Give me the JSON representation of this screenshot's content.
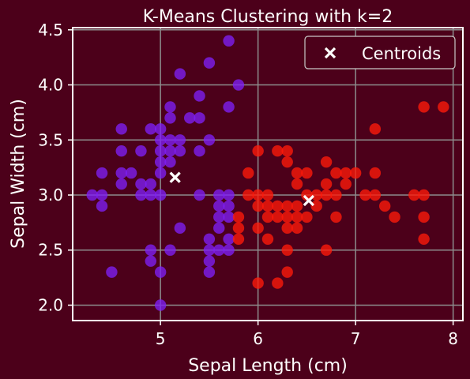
{
  "colors": {
    "figure_bg": "#4c001a",
    "axes_bg": "#4c001a",
    "cluster_0": "#7f1ff5",
    "cluster_1": "#ff1a0a",
    "centroid": "#ffffff",
    "grid": "#8c8c8c",
    "text": "#ffffff"
  },
  "chart_data": {
    "type": "scatter",
    "title": "K-Means Clustering with k=2",
    "xlabel": "Sepal Length (cm)",
    "ylabel": "Sepal Width (cm)",
    "xlim": [
      4.1,
      8.1
    ],
    "ylim": [
      1.86,
      4.52
    ],
    "xticks": [
      5,
      6,
      7,
      8
    ],
    "yticks": [
      2.0,
      2.5,
      3.0,
      3.5,
      4.0,
      4.5
    ],
    "grid": true,
    "legend": {
      "position": "top-right",
      "entries": [
        "Centroids"
      ]
    },
    "series": [
      {
        "cluster": 0,
        "color": "#7f1ff5",
        "points": [
          [
            4.3,
            3.0
          ],
          [
            4.4,
            3.0
          ],
          [
            4.4,
            2.9
          ],
          [
            4.4,
            3.2
          ],
          [
            4.5,
            2.3
          ],
          [
            4.6,
            3.1
          ],
          [
            4.6,
            3.2
          ],
          [
            4.6,
            3.4
          ],
          [
            4.6,
            3.6
          ],
          [
            4.7,
            3.2
          ],
          [
            4.8,
            3.0
          ],
          [
            4.8,
            3.1
          ],
          [
            4.8,
            3.4
          ],
          [
            4.9,
            3.0
          ],
          [
            4.9,
            3.1
          ],
          [
            4.9,
            3.6
          ],
          [
            4.9,
            2.5
          ],
          [
            4.9,
            2.4
          ],
          [
            5.0,
            2.0
          ],
          [
            5.0,
            2.3
          ],
          [
            5.0,
            3.0
          ],
          [
            5.0,
            3.2
          ],
          [
            5.0,
            3.3
          ],
          [
            5.0,
            3.4
          ],
          [
            5.0,
            3.5
          ],
          [
            5.0,
            3.6
          ],
          [
            5.1,
            2.5
          ],
          [
            5.1,
            3.3
          ],
          [
            5.1,
            3.4
          ],
          [
            5.1,
            3.5
          ],
          [
            5.1,
            3.7
          ],
          [
            5.1,
            3.8
          ],
          [
            5.2,
            2.7
          ],
          [
            5.2,
            3.4
          ],
          [
            5.2,
            3.5
          ],
          [
            5.2,
            4.1
          ],
          [
            5.3,
            3.7
          ],
          [
            5.4,
            3.0
          ],
          [
            5.4,
            3.4
          ],
          [
            5.4,
            3.7
          ],
          [
            5.4,
            3.9
          ],
          [
            5.5,
            2.3
          ],
          [
            5.5,
            2.4
          ],
          [
            5.5,
            2.5
          ],
          [
            5.5,
            2.6
          ],
          [
            5.5,
            3.5
          ],
          [
            5.5,
            4.2
          ],
          [
            5.6,
            2.5
          ],
          [
            5.6,
            2.7
          ],
          [
            5.6,
            2.8
          ],
          [
            5.6,
            2.9
          ],
          [
            5.6,
            3.0
          ],
          [
            5.7,
            2.5
          ],
          [
            5.7,
            2.6
          ],
          [
            5.7,
            2.8
          ],
          [
            5.7,
            2.9
          ],
          [
            5.7,
            3.0
          ],
          [
            5.7,
            3.8
          ],
          [
            5.7,
            4.4
          ],
          [
            5.8,
            4.0
          ]
        ]
      },
      {
        "cluster": 1,
        "color": "#ff1a0a",
        "points": [
          [
            5.8,
            2.6
          ],
          [
            5.8,
            2.7
          ],
          [
            5.8,
            2.8
          ],
          [
            5.9,
            3.0
          ],
          [
            5.9,
            3.2
          ],
          [
            6.0,
            2.2
          ],
          [
            6.0,
            2.7
          ],
          [
            6.0,
            2.9
          ],
          [
            6.0,
            3.0
          ],
          [
            6.0,
            3.4
          ],
          [
            6.1,
            2.6
          ],
          [
            6.1,
            2.8
          ],
          [
            6.1,
            2.9
          ],
          [
            6.1,
            3.0
          ],
          [
            6.2,
            2.2
          ],
          [
            6.2,
            2.8
          ],
          [
            6.2,
            2.9
          ],
          [
            6.2,
            3.4
          ],
          [
            6.3,
            2.3
          ],
          [
            6.3,
            2.5
          ],
          [
            6.3,
            2.7
          ],
          [
            6.3,
            2.8
          ],
          [
            6.3,
            2.9
          ],
          [
            6.3,
            3.3
          ],
          [
            6.3,
            3.4
          ],
          [
            6.4,
            2.7
          ],
          [
            6.4,
            2.8
          ],
          [
            6.4,
            2.9
          ],
          [
            6.4,
            3.1
          ],
          [
            6.4,
            3.2
          ],
          [
            6.5,
            2.8
          ],
          [
            6.5,
            3.0
          ],
          [
            6.5,
            3.2
          ],
          [
            6.6,
            2.9
          ],
          [
            6.6,
            3.0
          ],
          [
            6.7,
            2.5
          ],
          [
            6.7,
            3.0
          ],
          [
            6.7,
            3.1
          ],
          [
            6.7,
            3.3
          ],
          [
            6.8,
            2.8
          ],
          [
            6.8,
            3.0
          ],
          [
            6.8,
            3.2
          ],
          [
            6.9,
            3.1
          ],
          [
            6.9,
            3.2
          ],
          [
            7.0,
            3.2
          ],
          [
            7.1,
            3.0
          ],
          [
            7.2,
            3.0
          ],
          [
            7.2,
            3.2
          ],
          [
            7.2,
            3.6
          ],
          [
            7.3,
            2.9
          ],
          [
            7.4,
            2.8
          ],
          [
            7.6,
            3.0
          ],
          [
            7.7,
            2.6
          ],
          [
            7.7,
            2.8
          ],
          [
            7.7,
            3.0
          ],
          [
            7.7,
            3.8
          ],
          [
            7.9,
            3.8
          ]
        ]
      }
    ],
    "centroids": [
      {
        "name": "Centroids",
        "x": 5.15,
        "y": 3.16
      },
      {
        "name": "Centroids",
        "x": 6.52,
        "y": 2.95
      }
    ]
  }
}
